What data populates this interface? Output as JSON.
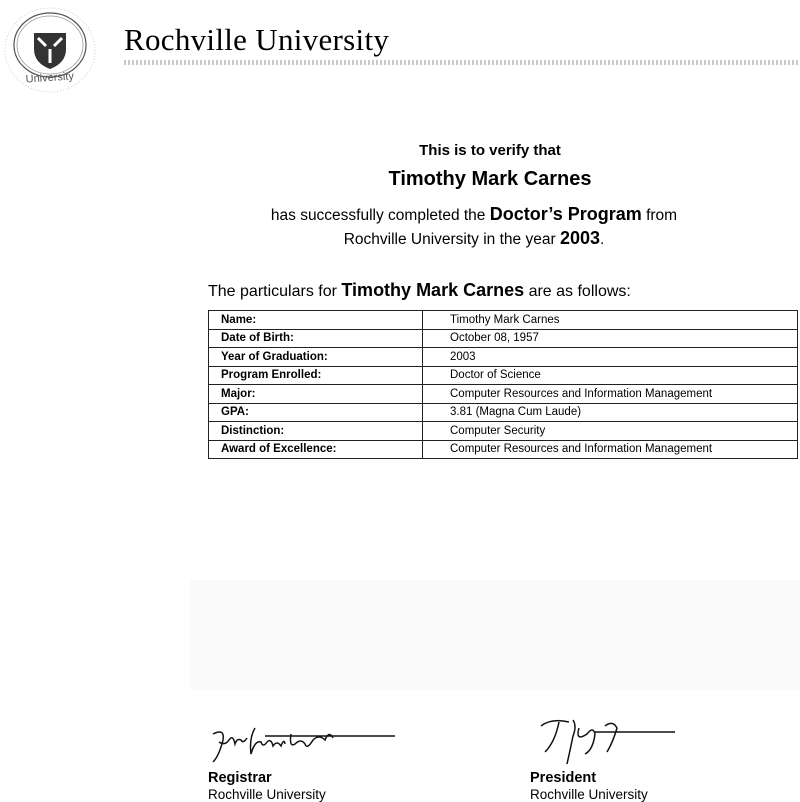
{
  "header": {
    "university": "Rochville University",
    "seal_text": "University"
  },
  "body": {
    "verify": "This is to verify that",
    "recipient": "Timothy Mark Carnes",
    "line1_pre": "has successfully completed the ",
    "line1_program": "Doctor’s Program",
    "line1_post": " from",
    "line2_pre": "Rochville University in the year ",
    "line2_year": "2003",
    "line2_post": ".",
    "particulars_pre": "The particulars for ",
    "particulars_name": "Timothy Mark Carnes",
    "particulars_post": " are as follows:"
  },
  "table": [
    {
      "label": "Name:",
      "value": "Timothy Mark Carnes"
    },
    {
      "label": "Date of Birth:",
      "value": "October 08, 1957"
    },
    {
      "label": "Year of Graduation:",
      "value": "2003"
    },
    {
      "label": "Program Enrolled:",
      "value": "Doctor of Science"
    },
    {
      "label": "Major:",
      "value": "Computer Resources and Information Management"
    },
    {
      "label": "GPA:",
      "value": "3.81 (Magna Cum Laude)"
    },
    {
      "label": "Distinction:",
      "value": "Computer Security"
    },
    {
      "label": "Award of Excellence:",
      "value": "Computer Resources and Information Management"
    }
  ],
  "signatures": [
    {
      "role": "Registrar",
      "org": "Rochville University"
    },
    {
      "role": "President",
      "org": "Rochville University"
    }
  ]
}
